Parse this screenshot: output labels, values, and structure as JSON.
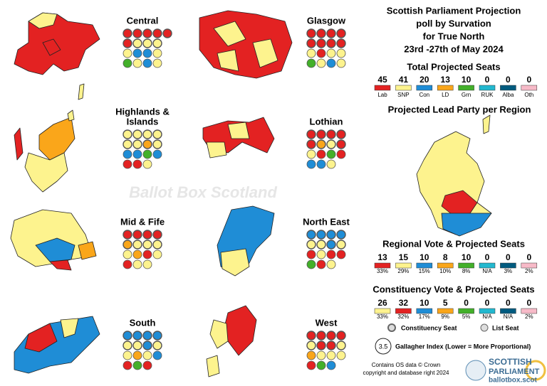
{
  "title": [
    "Scottish Parliament Projection",
    "poll by Survation",
    "for True North",
    "23rd -27th of May 2024"
  ],
  "parties": [
    {
      "name": "Lab",
      "color": "#e32222"
    },
    {
      "name": "SNP",
      "color": "#fdf38e"
    },
    {
      "name": "Con",
      "color": "#1f8dd6"
    },
    {
      "name": "LD",
      "color": "#faa61a"
    },
    {
      "name": "Grn",
      "color": "#43b02a"
    },
    {
      "name": "RUK",
      "color": "#22b8cf"
    },
    {
      "name": "Alba",
      "color": "#005b7f"
    },
    {
      "name": "Oth",
      "color": "#f7bac8"
    }
  ],
  "total": {
    "heading": "Total Projected Seats",
    "seats": [
      45,
      41,
      20,
      13,
      10,
      0,
      0,
      0
    ]
  },
  "lead_heading": "Projected Lead Party per Region",
  "regional": {
    "heading": "Regional Vote & Projected Seats",
    "colors": [
      "#e32222",
      "#fdf38e",
      "#1f8dd6",
      "#faa61a",
      "#43b02a",
      "#22b8cf",
      "#005b7f",
      "#f7bac8"
    ],
    "seats": [
      13,
      15,
      10,
      8,
      10,
      0,
      0,
      0
    ],
    "shares": [
      "33%",
      "29%",
      "15%",
      "10%",
      "8%",
      "N/A",
      "3%",
      "2%"
    ]
  },
  "constituency": {
    "heading": "Constituency Vote & Projected Seats",
    "colors": [
      "#fdf38e",
      "#e32222",
      "#1f8dd6",
      "#faa61a",
      "#43b02a",
      "#22b8cf",
      "#005b7f",
      "#f7bac8"
    ],
    "seats": [
      26,
      32,
      10,
      5,
      0,
      0,
      0,
      0
    ],
    "shares": [
      "33%",
      "32%",
      "17%",
      "9%",
      "5%",
      "N/A",
      "N/A",
      "2%"
    ]
  },
  "regions": [
    {
      "name": [
        "Central"
      ],
      "rows": [
        [
          "Lab",
          "Lab",
          "Lab",
          "Lab",
          "Lab"
        ],
        [
          "Lab",
          "SNP",
          "SNP",
          "SNP"
        ],
        [
          "SNP",
          "Con",
          "Con",
          "SNP"
        ],
        [
          "Grn",
          "SNP",
          "Con",
          "SNP"
        ]
      ]
    },
    {
      "name": [
        "Glasgow"
      ],
      "rows": [
        [
          "Lab",
          "Lab",
          "Lab",
          "Lab"
        ],
        [
          "Lab",
          "Lab",
          "Lab",
          "Lab"
        ],
        [
          "SNP",
          "Lab",
          "SNP",
          "SNP"
        ],
        [
          "Grn",
          "SNP",
          "Con",
          "SNP"
        ]
      ]
    },
    {
      "name": [
        "Highlands &",
        "Islands"
      ],
      "rows": [
        [
          "SNP",
          "SNP",
          "SNP",
          "SNP"
        ],
        [
          "SNP",
          "SNP",
          "LD",
          "SNP"
        ],
        [
          "Con",
          "Con",
          "Grn",
          "Con"
        ],
        [
          "Lab",
          "Lab",
          "SNP"
        ]
      ]
    },
    {
      "name": [
        "Lothian"
      ],
      "rows": [
        [
          "Lab",
          "Lab",
          "Lab",
          "Lab"
        ],
        [
          "Lab",
          "LD",
          "SNP",
          "Lab"
        ],
        [
          "SNP",
          "Lab",
          "Grn",
          "Lab"
        ],
        [
          "Con",
          "Con",
          "SNP"
        ]
      ]
    },
    {
      "name": [
        "Mid & Fife"
      ],
      "rows": [
        [
          "Lab",
          "Lab",
          "Lab",
          "Lab"
        ],
        [
          "LD",
          "SNP",
          "SNP",
          "SNP"
        ],
        [
          "SNP",
          "LD",
          "Lab",
          "SNP"
        ],
        [
          "Lab",
          "SNP",
          "SNP"
        ]
      ]
    },
    {
      "name": [
        "North East"
      ],
      "rows": [
        [
          "Con",
          "Con",
          "Con",
          "Con"
        ],
        [
          "SNP",
          "SNP",
          "Con",
          "SNP"
        ],
        [
          "Lab",
          "SNP",
          "Lab",
          "Lab"
        ],
        [
          "Grn",
          "Lab",
          "SNP"
        ]
      ]
    },
    {
      "name": [
        "South"
      ],
      "rows": [
        [
          "Con",
          "Con",
          "Con",
          "Con"
        ],
        [
          "SNP",
          "SNP",
          "Con",
          "SNP"
        ],
        [
          "SNP",
          "LD",
          "SNP",
          "Con"
        ],
        [
          "Lab",
          "Grn",
          "Lab"
        ]
      ]
    },
    {
      "name": [
        "West"
      ],
      "rows": [
        [
          "Lab",
          "Lab",
          "Lab",
          "Lab"
        ],
        [
          "SNP",
          "Lab",
          "Lab",
          "SNP"
        ],
        [
          "LD",
          "SNP",
          "SNP",
          "SNP"
        ],
        [
          "Lab",
          "Grn",
          "Con"
        ]
      ]
    }
  ],
  "legend": {
    "constituency": "Constituency Seat",
    "list": "List Seat"
  },
  "gallagher": {
    "value": "3.5",
    "label": "Gallagher Index (Lower = More Proportional)"
  },
  "credit": [
    "Contains OS data © Crown",
    "copyright and database right 2024"
  ],
  "logo": [
    "SCOTTISH",
    "PARLIAMENT",
    "ballotbox.scot"
  ],
  "watermark": "Ballot Box Scotland"
}
